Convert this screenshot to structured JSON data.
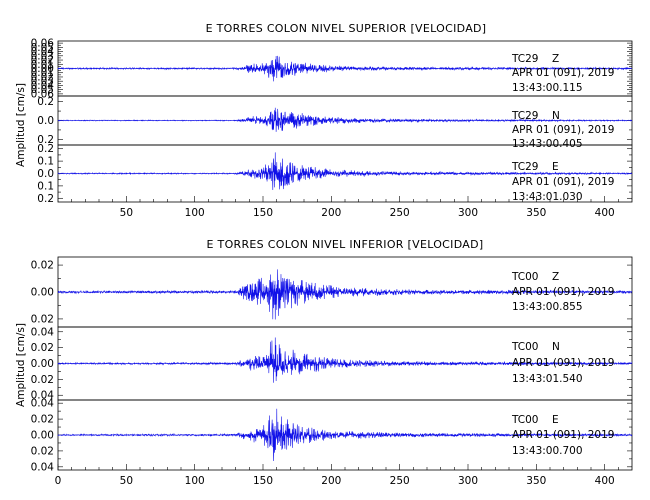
{
  "chart_data": [
    {
      "type": "line",
      "title": "E TORRES COLON NIVEL SUPERIOR [VELOCIDAD]",
      "ylabel": "Amplitud [cm/s]",
      "xlabel": "",
      "xlim": [
        0,
        420
      ],
      "xticks": [
        "50",
        "100",
        "150",
        "200",
        "250",
        "300",
        "350",
        "400"
      ],
      "panels": [
        {
          "station": "TC29",
          "component": "Z",
          "date": "APR 01 (091), 2019",
          "time": "13:43:00.115",
          "ylim": [
            -0.065,
            0.065
          ],
          "yticks": [
            0.06,
            0.05,
            0.04,
            0.03,
            0.02,
            0.01,
            0.0,
            -0.01,
            -0.02,
            -0.03,
            -0.04,
            -0.05,
            -0.06
          ],
          "ytick_labels": [
            "0.06",
            "0.05",
            "0.04",
            "0.03",
            "0.02",
            "0.01",
            "0.00",
            "0.01",
            "0.02",
            "0.03",
            "0.04",
            "0.05",
            "0.06"
          ],
          "envelope": [
            [
              0,
              0.002
            ],
            [
              130,
              0.002
            ],
            [
              136,
              0.004
            ],
            [
              140,
              0.013
            ],
            [
              148,
              0.01
            ],
            [
              155,
              0.028
            ],
            [
              158,
              0.045
            ],
            [
              162,
              0.035
            ],
            [
              170,
              0.022
            ],
            [
              185,
              0.012
            ],
            [
              210,
              0.006
            ],
            [
              260,
              0.004
            ],
            [
              420,
              0.002
            ]
          ]
        },
        {
          "station": "TC29",
          "component": "N",
          "date": "APR 01 (091), 2019",
          "time": "13:43:00.405",
          "ylim": [
            -0.26,
            0.26
          ],
          "yticks": [
            0.2,
            0.0,
            -0.2
          ],
          "ytick_labels": [
            "0.2",
            "0.0",
            "0.2"
          ],
          "envelope": [
            [
              0,
              0.005
            ],
            [
              130,
              0.005
            ],
            [
              136,
              0.02
            ],
            [
              142,
              0.06
            ],
            [
              150,
              0.06
            ],
            [
              156,
              0.13
            ],
            [
              160,
              0.18
            ],
            [
              166,
              0.14
            ],
            [
              175,
              0.09
            ],
            [
              200,
              0.04
            ],
            [
              240,
              0.02
            ],
            [
              300,
              0.012
            ],
            [
              420,
              0.006
            ]
          ]
        },
        {
          "station": "TC29",
          "component": "E",
          "date": "APR 01 (091), 2019",
          "time": "13:43:01.030",
          "ylim": [
            -0.23,
            0.23
          ],
          "yticks": [
            0.2,
            0.1,
            0.0,
            -0.1,
            -0.2
          ],
          "ytick_labels": [
            "0.2",
            "0.1",
            "0.0",
            "0.1",
            "0.2"
          ],
          "envelope": [
            [
              0,
              0.005
            ],
            [
              130,
              0.005
            ],
            [
              136,
              0.025
            ],
            [
              142,
              0.04
            ],
            [
              150,
              0.06
            ],
            [
              156,
              0.13
            ],
            [
              160,
              0.19
            ],
            [
              165,
              0.15
            ],
            [
              175,
              0.08
            ],
            [
              200,
              0.035
            ],
            [
              250,
              0.015
            ],
            [
              420,
              0.006
            ]
          ]
        }
      ]
    },
    {
      "type": "line",
      "title": "E TORRES COLON NIVEL INFERIOR [VELOCIDAD]",
      "ylabel": "Amplitud [cm/s]",
      "xlabel": "",
      "xlim": [
        0,
        420
      ],
      "xticks": [
        "0",
        "50",
        "100",
        "150",
        "200",
        "250",
        "300",
        "350",
        "400"
      ],
      "panels": [
        {
          "station": "TC00",
          "component": "Z",
          "date": "APR 01 (091), 2019",
          "time": "13:43:00.855",
          "ylim": [
            -0.026,
            0.026
          ],
          "yticks": [
            0.02,
            0.0,
            -0.02
          ],
          "ytick_labels": [
            "0.02",
            "0.00",
            "0.02"
          ],
          "envelope": [
            [
              0,
              0.001
            ],
            [
              130,
              0.0012
            ],
            [
              136,
              0.006
            ],
            [
              145,
              0.01
            ],
            [
              152,
              0.012
            ],
            [
              158,
              0.022
            ],
            [
              162,
              0.018
            ],
            [
              170,
              0.013
            ],
            [
              185,
              0.008
            ],
            [
              210,
              0.004
            ],
            [
              260,
              0.002
            ],
            [
              420,
              0.0012
            ]
          ]
        },
        {
          "station": "TC00",
          "component": "N",
          "date": "APR 01 (091), 2019",
          "time": "13:43:01.540",
          "ylim": [
            -0.046,
            0.046
          ],
          "yticks": [
            0.04,
            0.02,
            0.0,
            -0.02,
            -0.04
          ],
          "ytick_labels": [
            "0.04",
            "0.02",
            "0.00",
            "0.02",
            "0.04"
          ],
          "envelope": [
            [
              0,
              0.001
            ],
            [
              130,
              0.0015
            ],
            [
              136,
              0.006
            ],
            [
              145,
              0.012
            ],
            [
              152,
              0.012
            ],
            [
              157,
              0.035
            ],
            [
              160,
              0.038
            ],
            [
              166,
              0.025
            ],
            [
              175,
              0.016
            ],
            [
              200,
              0.007
            ],
            [
              250,
              0.003
            ],
            [
              420,
              0.0015
            ]
          ]
        },
        {
          "station": "TC00",
          "component": "E",
          "date": "APR 01 (091), 2019",
          "time": "13:43:00.700",
          "ylim": [
            -0.044,
            0.044
          ],
          "yticks": [
            0.04,
            0.02,
            0.0,
            -0.02,
            -0.04
          ],
          "ytick_labels": [
            "0.04",
            "0.02",
            "0.00",
            "0.02",
            "0.04"
          ],
          "envelope": [
            [
              0,
              0.001
            ],
            [
              130,
              0.0015
            ],
            [
              136,
              0.006
            ],
            [
              145,
              0.012
            ],
            [
              152,
              0.014
            ],
            [
              156,
              0.036
            ],
            [
              160,
              0.038
            ],
            [
              166,
              0.026
            ],
            [
              175,
              0.014
            ],
            [
              200,
              0.006
            ],
            [
              250,
              0.003
            ],
            [
              420,
              0.0015
            ]
          ]
        }
      ]
    }
  ]
}
